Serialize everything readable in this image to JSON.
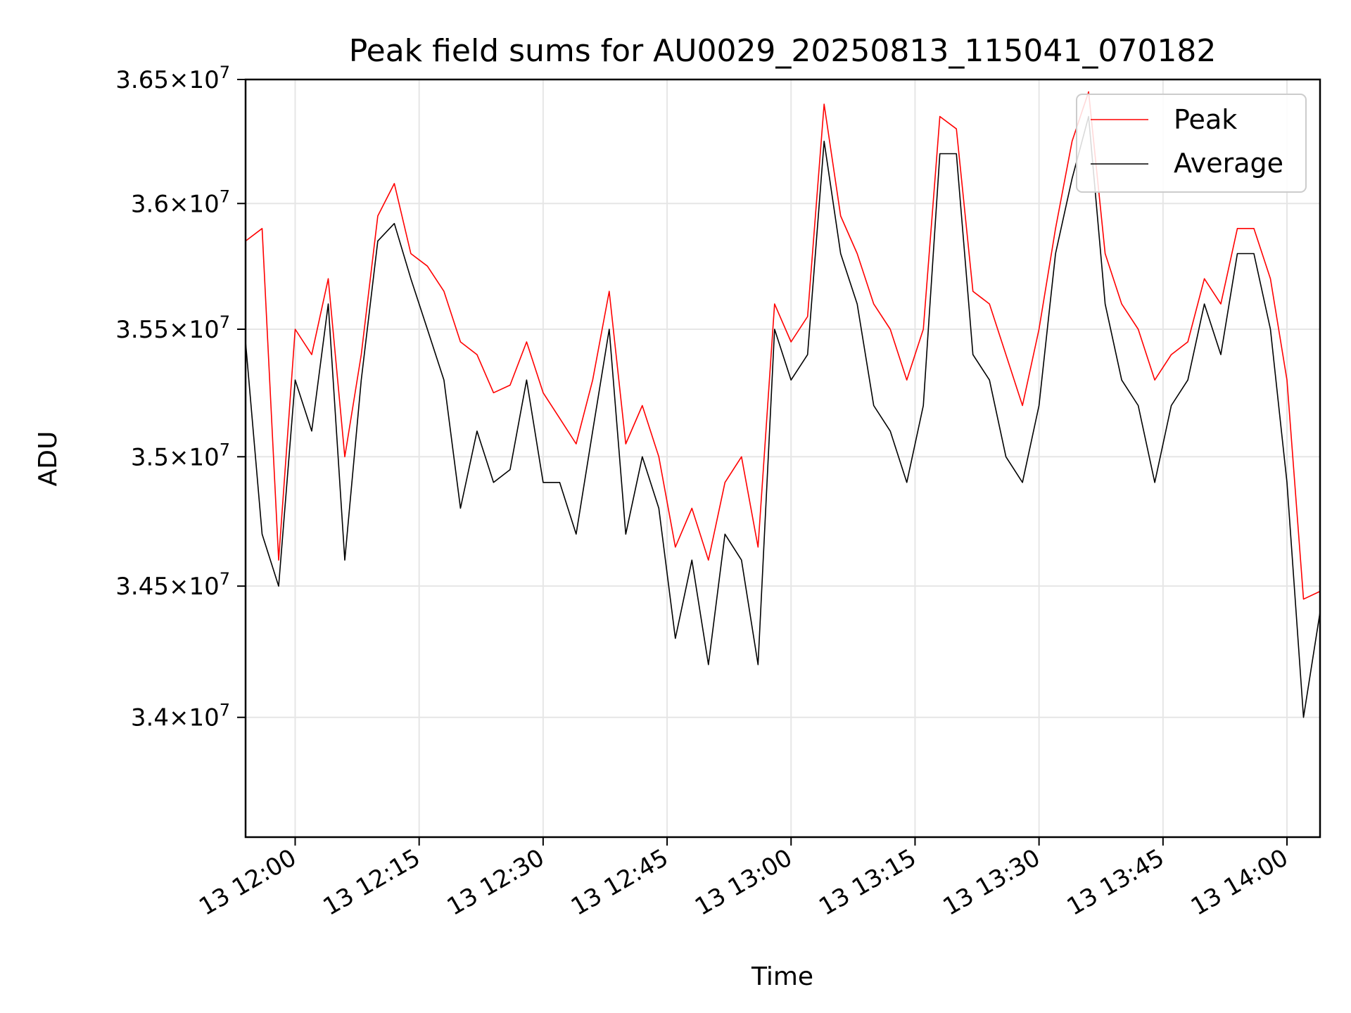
{
  "chart_data": {
    "type": "line",
    "title": "Peak field sums for AU0029_20250813_115041_070182",
    "xlabel": "Time",
    "ylabel": "ADU",
    "y_scale": "log",
    "xlim": [
      "13 11:54",
      "13 14:04"
    ],
    "ylim": [
      33550000,
      36500000
    ],
    "grid": true,
    "legend_position": "upper right",
    "x_tick_labels": [
      "13 12:00",
      "13 12:15",
      "13 12:30",
      "13 12:45",
      "13 13:00",
      "13 13:15",
      "13 13:30",
      "13 13:45",
      "13 14:00"
    ],
    "y_ticks": [
      {
        "value": 34000000,
        "mantissa": "3.4",
        "base": "10",
        "exponent": "7"
      },
      {
        "value": 34500000,
        "mantissa": "3.45",
        "base": "10",
        "exponent": "7"
      },
      {
        "value": 35000000,
        "mantissa": "3.5",
        "base": "10",
        "exponent": "7"
      },
      {
        "value": 35500000,
        "mantissa": "3.55",
        "base": "10",
        "exponent": "7"
      },
      {
        "value": 36000000,
        "mantissa": "3.6",
        "base": "10",
        "exponent": "7"
      },
      {
        "value": 36500000,
        "mantissa": "3.65",
        "base": "10",
        "exponent": "7"
      }
    ],
    "x": [
      "13 11:54",
      "13 11:56",
      "13 11:58",
      "13 12:00",
      "13 12:02",
      "13 12:04",
      "13 12:06",
      "13 12:08",
      "13 12:10",
      "13 12:12",
      "13 12:14",
      "13 12:16",
      "13 12:18",
      "13 12:20",
      "13 12:22",
      "13 12:24",
      "13 12:26",
      "13 12:28",
      "13 12:30",
      "13 12:32",
      "13 12:34",
      "13 12:36",
      "13 12:38",
      "13 12:40",
      "13 12:42",
      "13 12:44",
      "13 12:46",
      "13 12:48",
      "13 12:50",
      "13 12:52",
      "13 12:54",
      "13 12:56",
      "13 12:58",
      "13 13:00",
      "13 13:02",
      "13 13:04",
      "13 13:06",
      "13 13:08",
      "13 13:10",
      "13 13:12",
      "13 13:14",
      "13 13:16",
      "13 13:18",
      "13 13:20",
      "13 13:22",
      "13 13:24",
      "13 13:26",
      "13 13:28",
      "13 13:30",
      "13 13:32",
      "13 13:34",
      "13 13:36",
      "13 13:38",
      "13 13:40",
      "13 13:42",
      "13 13:44",
      "13 13:46",
      "13 13:48",
      "13 13:50",
      "13 13:52",
      "13 13:54",
      "13 13:56",
      "13 13:58",
      "13 14:00",
      "13 14:02",
      "13 14:04"
    ],
    "series": [
      {
        "name": "Peak",
        "color": "#ff0000",
        "values": [
          35850000,
          35900000,
          34600000,
          35500000,
          35400000,
          35700000,
          35000000,
          35400000,
          35950000,
          36080000,
          35800000,
          35750000,
          35650000,
          35450000,
          35400000,
          35250000,
          35280000,
          35450000,
          35250000,
          35150000,
          35050000,
          35300000,
          35650000,
          35050000,
          35200000,
          35000000,
          34650000,
          34800000,
          34600000,
          34900000,
          35000000,
          34650000,
          35600000,
          35450000,
          35550000,
          36400000,
          35950000,
          35800000,
          35600000,
          35500000,
          35300000,
          35500000,
          36350000,
          36300000,
          35650000,
          35600000,
          35400000,
          35200000,
          35500000,
          35900000,
          36250000,
          36450000,
          35800000,
          35600000,
          35500000,
          35300000,
          35400000,
          35450000,
          35700000,
          35600000,
          35900000,
          35900000,
          35700000,
          35300000,
          34450000,
          34480000
        ]
      },
      {
        "name": "Average",
        "color": "#000000",
        "values": [
          35450000,
          34700000,
          34500000,
          35300000,
          35100000,
          35600000,
          34600000,
          35300000,
          35850000,
          35920000,
          35700000,
          35500000,
          35300000,
          34800000,
          35100000,
          34900000,
          34950000,
          35300000,
          34900000,
          34900000,
          34700000,
          35100000,
          35500000,
          34700000,
          35000000,
          34800000,
          34300000,
          34600000,
          34200000,
          34700000,
          34600000,
          34200000,
          35500000,
          35300000,
          35400000,
          36250000,
          35800000,
          35600000,
          35200000,
          35100000,
          34900000,
          35200000,
          36200000,
          36200000,
          35400000,
          35300000,
          35000000,
          34900000,
          35200000,
          35800000,
          36100000,
          36350000,
          35600000,
          35300000,
          35200000,
          34900000,
          35200000,
          35300000,
          35600000,
          35400000,
          35800000,
          35800000,
          35500000,
          34900000,
          34000000,
          34400000
        ]
      }
    ]
  }
}
